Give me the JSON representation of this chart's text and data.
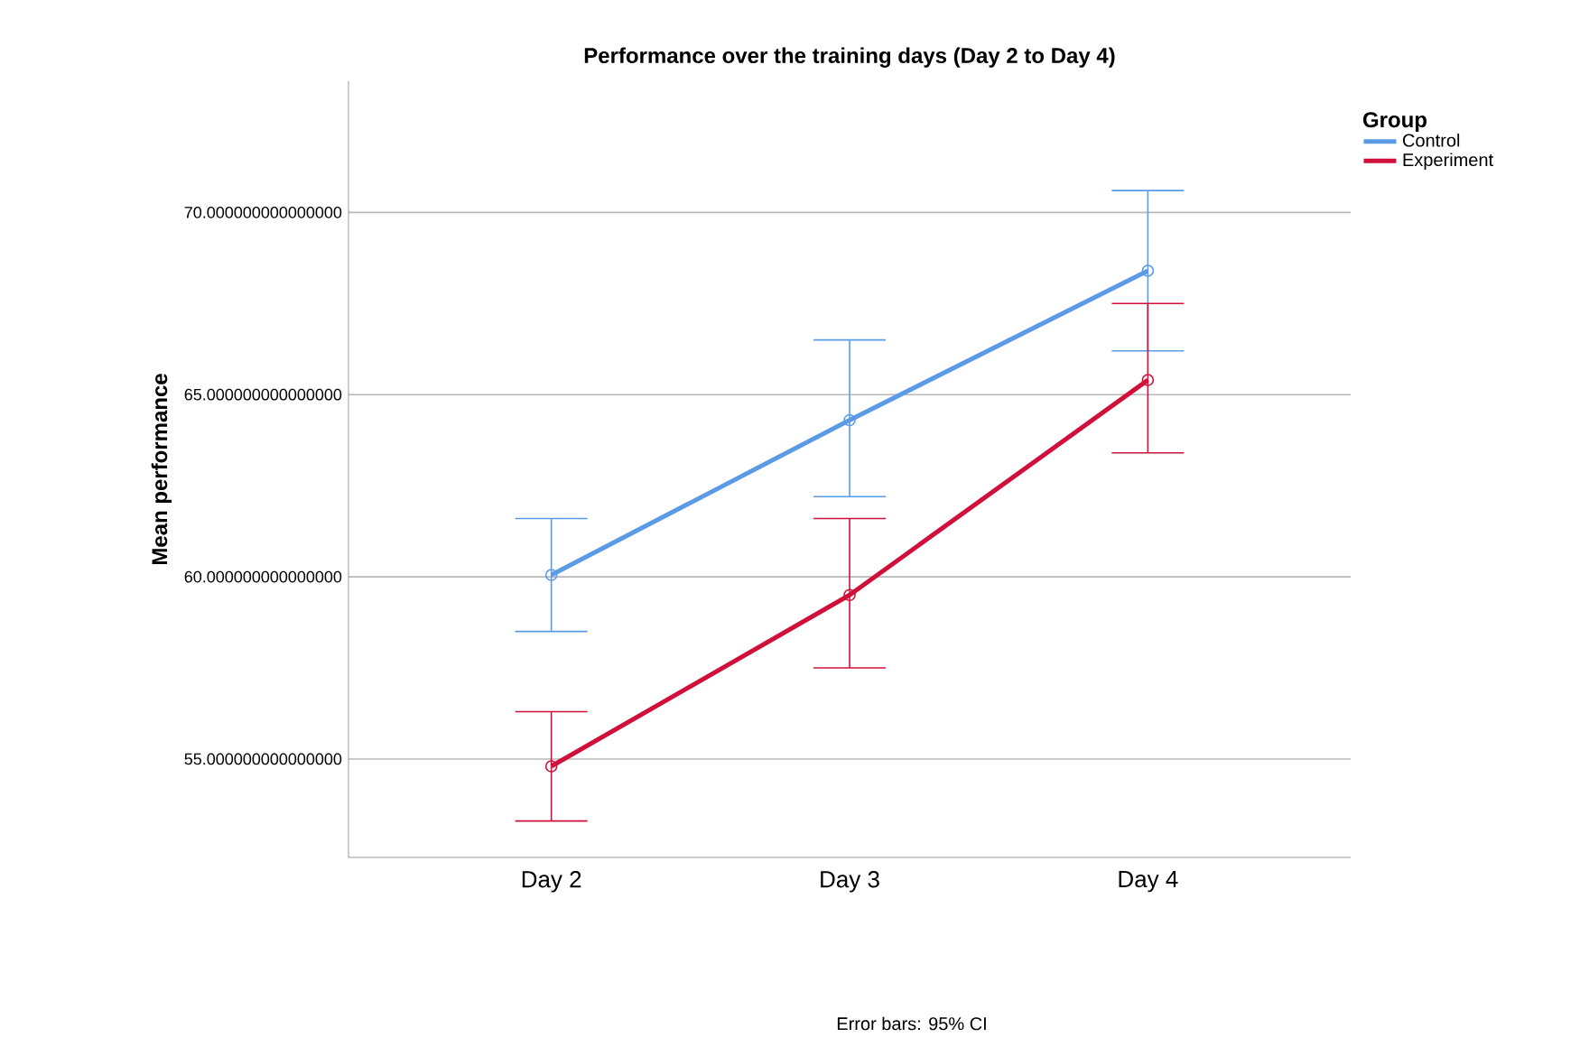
{
  "chart_data": {
    "type": "line",
    "title": "Performance over the training days (Day 2 to Day 4)",
    "ylabel": "Mean performance",
    "legend_title": "Group",
    "categories": [
      "Day 2",
      "Day 3",
      "Day 4"
    ],
    "series": [
      {
        "name": "Control",
        "color": "#5b9be6",
        "values": [
          60.05,
          64.3,
          68.4
        ],
        "errors": [
          [
            58.5,
            61.6
          ],
          [
            62.2,
            66.5
          ],
          [
            66.2,
            70.6
          ]
        ]
      },
      {
        "name": "Experiment",
        "color": "#d0103a",
        "values": [
          54.8,
          59.5,
          65.4
        ],
        "errors": [
          [
            53.3,
            56.3
          ],
          [
            57.5,
            61.6
          ],
          [
            63.4,
            67.5
          ]
        ]
      }
    ],
    "ylim": [
      52.3,
      73.6
    ],
    "yticks": [
      {
        "value": 55,
        "label": "55.000000000000000"
      },
      {
        "value": 60,
        "label": "60.000000000000000"
      },
      {
        "value": 65,
        "label": "65.000000000000000"
      },
      {
        "value": 70,
        "label": "70.000000000000000"
      }
    ],
    "grid": "y",
    "legend": "top right",
    "marker": "circle",
    "line_style": "solid",
    "annotations": [
      "Error bars: 95% CI"
    ]
  }
}
